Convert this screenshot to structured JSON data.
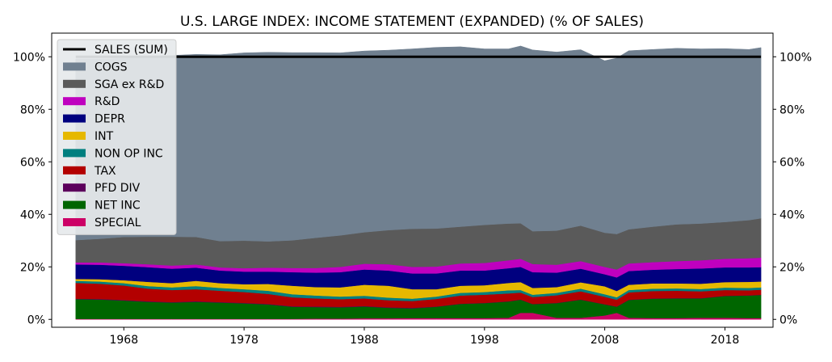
{
  "chart_data": {
    "type": "area",
    "title": "U.S. LARGE INDEX: INCOME STATEMENT (EXPANDED) (% OF SALES)",
    "xlabel": "",
    "ylabel": "",
    "x_range": [
      1962,
      2022
    ],
    "ylim": [
      -3,
      109
    ],
    "x_ticks": [
      "1968",
      "1978",
      "1988",
      "1998",
      "2008",
      "2018"
    ],
    "y_ticks": [
      "0%",
      "20%",
      "40%",
      "60%",
      "80%",
      "100%"
    ],
    "y_ticks_right": [
      "0%",
      "20%",
      "40%",
      "60%",
      "80%",
      "100%"
    ],
    "grid": false,
    "legend_position": "top-left",
    "x": [
      1964,
      1966,
      1968,
      1970,
      1972,
      1974,
      1976,
      1978,
      1980,
      1982,
      1984,
      1986,
      1988,
      1990,
      1992,
      1994,
      1996,
      1998,
      2000,
      2001,
      2002,
      2004,
      2006,
      2008,
      2009,
      2010,
      2012,
      2014,
      2016,
      2018,
      2020,
      2021
    ],
    "line_series": {
      "name": "SALES (SUM)",
      "color": "#000000",
      "values": [
        100,
        100,
        100,
        100,
        100,
        100,
        100,
        100,
        100,
        100,
        100,
        100,
        100,
        100,
        100,
        100,
        100,
        100,
        100,
        100,
        100,
        100,
        100,
        100,
        100,
        100,
        100,
        100,
        100,
        100,
        100,
        100
      ]
    },
    "series": [
      {
        "name": "COGS",
        "color": "#708090",
        "values": [
          69,
          68.5,
          68,
          68.5,
          69,
          69.5,
          71,
          71.5,
          72,
          71.5,
          70.5,
          69.5,
          69,
          68.5,
          68.5,
          69,
          68.5,
          67,
          66.5,
          67.5,
          69,
          68,
          67,
          65.5,
          67,
          68,
          67.5,
          67,
          66.5,
          66,
          65,
          65
        ]
      },
      {
        "name": "SGA ex R&D",
        "color": "#5a5a5a",
        "values": [
          8.5,
          9,
          10,
          10.5,
          11,
          10.5,
          10,
          10.5,
          10,
          10.5,
          11.5,
          12,
          12,
          13,
          14.5,
          14.5,
          14,
          14.5,
          14,
          13.5,
          12.5,
          13,
          13.5,
          13,
          13.5,
          13,
          13.5,
          14,
          14,
          14,
          14.5,
          15
        ]
      },
      {
        "name": "R&D",
        "color": "#bf00bf",
        "values": [
          0.8,
          0.9,
          1,
          1.1,
          1.2,
          1.2,
          1.2,
          1.3,
          1.5,
          1.6,
          1.8,
          2,
          2.2,
          2.4,
          2.5,
          2.6,
          2.7,
          2.9,
          3,
          3.1,
          3.1,
          3,
          2.9,
          2.8,
          3,
          2.9,
          2.9,
          3,
          3.1,
          3.3,
          3.5,
          3.6
        ]
      },
      {
        "name": "DEPR",
        "color": "#00007f",
        "values": [
          5.5,
          5.5,
          5.5,
          5.6,
          5.5,
          5,
          4.8,
          4.8,
          4.7,
          5.2,
          5.5,
          5.8,
          5.8,
          5.8,
          6,
          6,
          5.8,
          5.6,
          5.6,
          5.8,
          6,
          5.5,
          5.2,
          4.6,
          5.2,
          5.2,
          5.2,
          5.5,
          5.8,
          5.6,
          5.5,
          5.5
        ]
      },
      {
        "name": "INT",
        "color": "#e6b800",
        "values": [
          0.7,
          0.9,
          1.1,
          1.6,
          1.6,
          2,
          1.8,
          1.9,
          2.6,
          3.2,
          3.2,
          3.5,
          4.2,
          4.5,
          3.6,
          2.8,
          2.7,
          2.6,
          2.8,
          3,
          2.6,
          2.2,
          2.4,
          3,
          2.4,
          2,
          2,
          1.9,
          2,
          2.1,
          2.3,
          2.2
        ]
      },
      {
        "name": "NON OP INC",
        "color": "#007f7f",
        "values": [
          0.8,
          0.8,
          0.9,
          1,
          1,
          1.2,
          1.1,
          1.1,
          1.2,
          1.2,
          1.1,
          1,
          1,
          1,
          0.9,
          0.9,
          1,
          1,
          1.2,
          1,
          0.9,
          0.9,
          1,
          1,
          0.9,
          0.9,
          0.9,
          0.9,
          0.9,
          0.9,
          0.9,
          0.9
        ]
      },
      {
        "name": "TAX",
        "color": "#b30000",
        "values": [
          6,
          5.8,
          5.5,
          4.8,
          4.6,
          4.6,
          4.3,
          4.1,
          3.8,
          3.4,
          3.1,
          2.9,
          2.9,
          2.7,
          2.6,
          2.9,
          3.1,
          3.1,
          3,
          2.6,
          2.6,
          2.9,
          3.1,
          2.8,
          2.6,
          2.8,
          2.8,
          2.8,
          2.6,
          2.2,
          1.9,
          1.9
        ]
      },
      {
        "name": "PFD DIV",
        "color": "#5c005c",
        "values": [
          0.2,
          0.2,
          0.2,
          0.2,
          0.2,
          0.2,
          0.2,
          0.2,
          0.2,
          0.2,
          0.2,
          0.2,
          0.2,
          0.2,
          0.2,
          0.1,
          0.1,
          0.1,
          0.1,
          0.1,
          0.1,
          0.1,
          0.1,
          0.1,
          0.1,
          0.1,
          0.1,
          0.1,
          0.1,
          0.1,
          0.1,
          0.1
        ]
      },
      {
        "name": "NET INC",
        "color": "#006600",
        "values": [
          7.5,
          7.4,
          7,
          6.5,
          6.2,
          6.5,
          6.2,
          5.9,
          5.5,
          4.6,
          4.4,
          4.3,
          4.5,
          4,
          3.7,
          4.3,
          5.4,
          5.7,
          6.2,
          5,
          3.3,
          5.6,
          6.9,
          4.2,
          2.3,
          6.8,
          7.4,
          7.5,
          7.4,
          8.3,
          8.6,
          8.8
        ]
      },
      {
        "name": "SPECIAL",
        "color": "#cc0066",
        "values": [
          0.2,
          0.2,
          0.2,
          0.2,
          0.2,
          0.2,
          0.2,
          0.2,
          0.2,
          0.2,
          0.3,
          0.3,
          0.4,
          0.4,
          0.5,
          0.5,
          0.5,
          0.5,
          0.6,
          2.5,
          2.5,
          0.6,
          0.6,
          1.5,
          2.5,
          0.6,
          0.5,
          0.5,
          0.6,
          0.6,
          0.5,
          0.5
        ]
      }
    ]
  }
}
